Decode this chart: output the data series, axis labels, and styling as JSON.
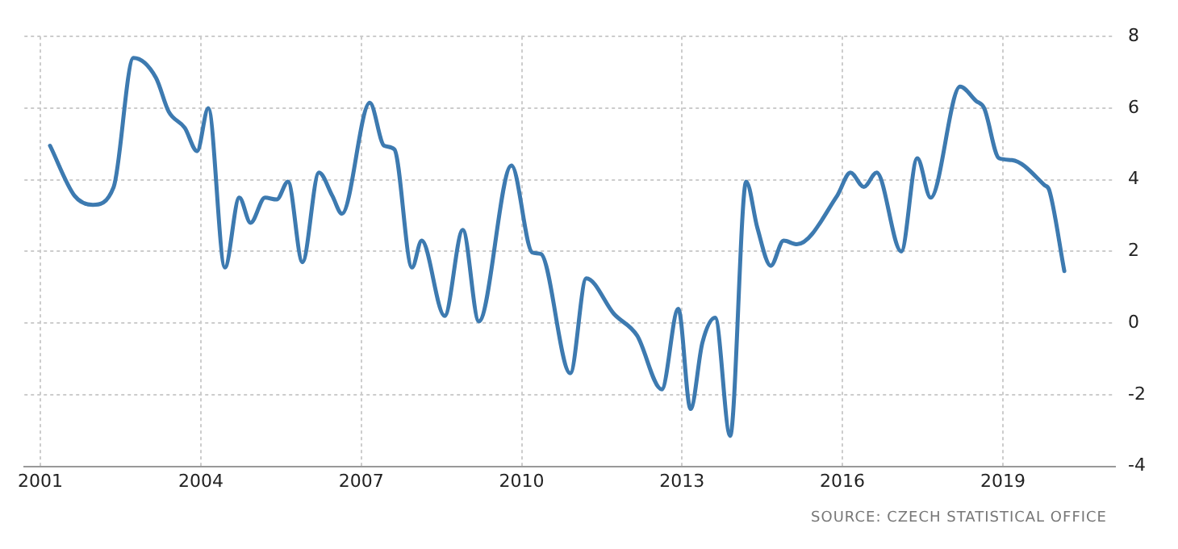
{
  "chart_data": {
    "type": "line",
    "x": [
      2001.18,
      2001.64,
      2001.98,
      2002.37,
      2002.74,
      2003.16,
      2003.4,
      2003.7,
      2003.93,
      2004.14,
      2004.45,
      2004.72,
      2004.93,
      2005.2,
      2005.42,
      2005.63,
      2005.9,
      2006.21,
      2006.46,
      2006.64,
      2007.16,
      2007.43,
      2007.62,
      2007.95,
      2008.13,
      2008.56,
      2008.9,
      2009.2,
      2009.81,
      2010.2,
      2010.36,
      2010.91,
      2011.21,
      2011.73,
      2012.16,
      2012.62,
      2012.93,
      2013.16,
      2013.38,
      2013.62,
      2013.9,
      2014.2,
      2014.41,
      2014.66,
      2014.9,
      2015.15,
      2015.9,
      2016.15,
      2016.4,
      2016.64,
      2017.1,
      2017.4,
      2017.65,
      2018.2,
      2018.5,
      2018.65,
      2018.93,
      2019.17,
      2019.78,
      2019.87,
      2020.15
    ],
    "series": [
      {
        "color": "#3d7ab0",
        "values": [
          4.95,
          3.55,
          3.3,
          3.8,
          7.4,
          6.85,
          5.9,
          5.45,
          4.8,
          6.0,
          1.55,
          3.5,
          2.8,
          3.5,
          3.45,
          3.95,
          1.7,
          4.2,
          3.55,
          3.05,
          6.15,
          4.95,
          4.85,
          1.55,
          2.3,
          0.2,
          2.6,
          0.05,
          4.4,
          1.97,
          1.93,
          -1.4,
          1.25,
          0.25,
          -0.35,
          -1.85,
          0.4,
          -2.4,
          -0.55,
          0.15,
          -3.15,
          3.95,
          2.65,
          1.6,
          2.3,
          2.2,
          3.55,
          4.2,
          3.8,
          4.2,
          2.0,
          4.6,
          3.5,
          6.6,
          6.2,
          6.0,
          4.6,
          4.55,
          3.85,
          3.7,
          1.45
        ]
      }
    ],
    "xlim": [
      2000.7,
      2021.1
    ],
    "xticks": [
      2001,
      2004,
      2007,
      2010,
      2013,
      2016,
      2019
    ],
    "ylim": [
      -4,
      8
    ],
    "yticks": [
      -4,
      -2,
      0,
      2,
      4,
      6,
      8
    ],
    "grid": true,
    "legend": false,
    "marker": "none",
    "line_style": "solid",
    "annotations": [
      "SOURCE: CZECH STATISTICAL OFFICE"
    ]
  }
}
